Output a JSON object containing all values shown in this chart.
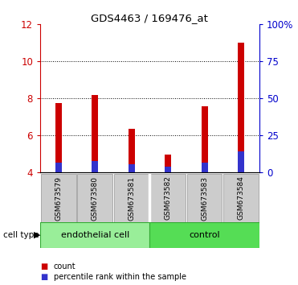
{
  "title": "GDS4463 / 169476_at",
  "samples": [
    "GSM673579",
    "GSM673580",
    "GSM673581",
    "GSM673582",
    "GSM673583",
    "GSM673584"
  ],
  "count_values": [
    7.75,
    8.2,
    6.35,
    4.95,
    7.55,
    11.0
  ],
  "percentile_values": [
    4.55,
    4.6,
    4.45,
    4.3,
    4.55,
    5.15
  ],
  "bar_bottom": 4.0,
  "count_color": "#cc0000",
  "percentile_color": "#3333cc",
  "ylim_left": [
    4,
    12
  ],
  "ylim_right": [
    0,
    100
  ],
  "yticks_left": [
    4,
    6,
    8,
    10,
    12
  ],
  "yticks_right": [
    0,
    25,
    50,
    75,
    100
  ],
  "yticklabels_right": [
    "0",
    "25",
    "50",
    "75",
    "100%"
  ],
  "groups": [
    {
      "label": "endothelial cell",
      "start": 0,
      "end": 3,
      "color": "#99ee99"
    },
    {
      "label": "control",
      "start": 3,
      "end": 6,
      "color": "#55dd55"
    }
  ],
  "cell_type_label": "cell type",
  "legend_count_label": "count",
  "legend_percentile_label": "percentile rank within the sample",
  "bar_width": 0.18,
  "left_tick_color": "#cc0000",
  "right_tick_color": "#0000cc",
  "group_box_color": "#cccccc",
  "grid_dotted_vals": [
    6,
    8,
    10
  ]
}
